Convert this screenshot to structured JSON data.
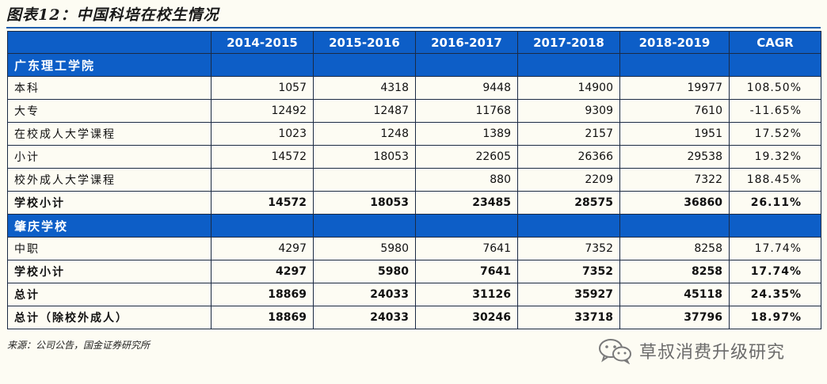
{
  "figure": {
    "title": "图表12：中国科培在校生情况",
    "source": "来源：公司公告，国金证券研究所"
  },
  "table": {
    "columns": [
      "",
      "2014-2015",
      "2015-2016",
      "2016-2017",
      "2017-2018",
      "2018-2019",
      "CAGR"
    ],
    "rows": [
      {
        "type": "section",
        "cells": [
          "广东理工学院",
          "",
          "",
          "",
          "",
          "",
          ""
        ]
      },
      {
        "type": "data",
        "cells": [
          "本科",
          "1057",
          "4318",
          "9448",
          "14900",
          "19977",
          "108.50%"
        ]
      },
      {
        "type": "data",
        "cells": [
          "大专",
          "12492",
          "12487",
          "11768",
          "9309",
          "7610",
          "-11.65%"
        ]
      },
      {
        "type": "data",
        "cells": [
          "在校成人大学课程",
          "1023",
          "1248",
          "1389",
          "2157",
          "1951",
          "17.52%"
        ]
      },
      {
        "type": "data",
        "cells": [
          "小计",
          "14572",
          "18053",
          "22605",
          "26366",
          "29538",
          "19.32%"
        ]
      },
      {
        "type": "data",
        "cells": [
          "校外成人大学课程",
          "",
          "",
          "880",
          "2209",
          "7322",
          "188.45%"
        ]
      },
      {
        "type": "bold",
        "cells": [
          "学校小计",
          "14572",
          "18053",
          "23485",
          "28575",
          "36860",
          "26.11%"
        ]
      },
      {
        "type": "section",
        "cells": [
          "肇庆学校",
          "",
          "",
          "",
          "",
          "",
          ""
        ]
      },
      {
        "type": "data",
        "cells": [
          "中职",
          "4297",
          "5980",
          "7641",
          "7352",
          "8258",
          "17.74%"
        ]
      },
      {
        "type": "bold",
        "cells": [
          "学校小计",
          "4297",
          "5980",
          "7641",
          "7352",
          "8258",
          "17.74%"
        ]
      },
      {
        "type": "bold",
        "cells": [
          "总计",
          "18869",
          "24033",
          "31126",
          "35927",
          "45118",
          "24.35%"
        ]
      },
      {
        "type": "bold",
        "cells": [
          "总计（除校外成人）",
          "18869",
          "24033",
          "30246",
          "33718",
          "37796",
          "18.97%"
        ]
      }
    ]
  },
  "watermark": {
    "text": "草叔消费升级研究",
    "icon": "wechat-icon",
    "color": "#6b6b6b"
  },
  "colors": {
    "header_bg": "#0d5ec7",
    "header_text": "#ffffff",
    "page_bg": "#fdfcf3",
    "rule": "#1f5fad"
  }
}
